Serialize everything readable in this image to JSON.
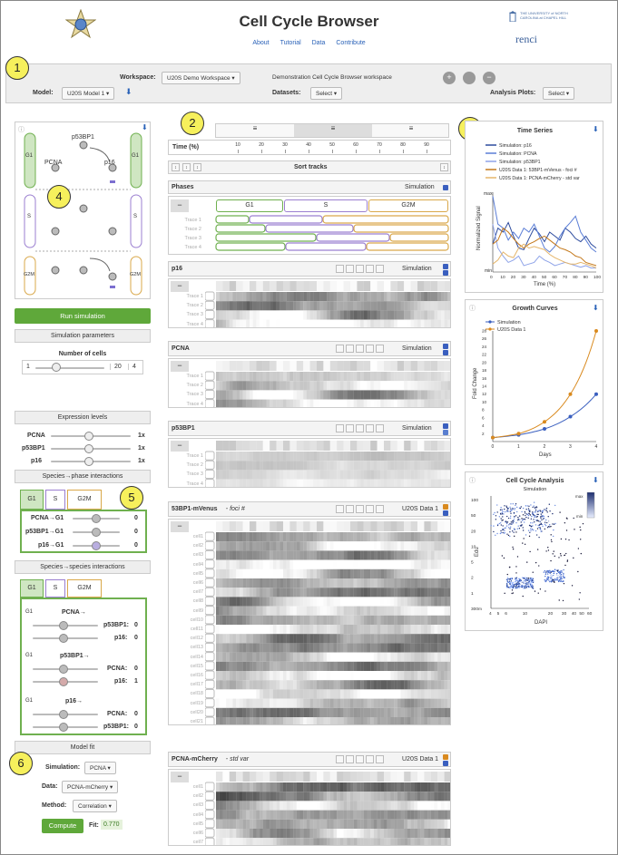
{
  "app": {
    "title": "Cell Cycle Browser",
    "links": [
      "About",
      "Tutorial",
      "Data",
      "Contribute"
    ],
    "unc": "THE UNIVERSITY of NORTH CAROLINA at CHAPEL HILL",
    "renci": "renci"
  },
  "callouts": [
    "1",
    "2",
    "3",
    "4",
    "5",
    "6"
  ],
  "toolbar": {
    "workspace_label": "Workspace:",
    "workspace_value": "U20S Demo Workspace",
    "workspace_desc": "Demonstration Cell Cycle Browser workspace",
    "model_label": "Model:",
    "model_value": "U20S Model 1",
    "datasets_label": "Datasets:",
    "datasets_value": "Select",
    "plots_label": "Analysis Plots:",
    "plots_value": "Select"
  },
  "model": {
    "nodes": [
      "p53BP1",
      "PCNA",
      "p16"
    ],
    "phases": [
      "G1",
      "S",
      "G2M"
    ]
  },
  "sim": {
    "run": "Run simulation",
    "params": "Simulation parameters",
    "cells_label": "Number of cells",
    "cells_min": "1",
    "cells_max": "20",
    "cells_val": "4",
    "expr": "Expression levels",
    "levels": [
      {
        "name": "PCNA",
        "val": "1x"
      },
      {
        "name": "p53BP1",
        "val": "1x"
      },
      {
        "name": "p16",
        "val": "1x"
      }
    ]
  },
  "spp": {
    "title": "Species→phase interactions",
    "tabs": [
      "G1",
      "S",
      "G2M"
    ],
    "rows": [
      {
        "name": "PCNA→G1",
        "val": "0"
      },
      {
        "name": "p53BP1→G1",
        "val": "0"
      },
      {
        "name": "p16→G1",
        "val": "0"
      }
    ]
  },
  "sps": {
    "title": "Species→species interactions",
    "tabs": [
      "G1",
      "S",
      "G2M"
    ],
    "groups": [
      {
        "phase": "G1",
        "src": "PCNA→",
        "targets": [
          {
            "n": "p53BP1:",
            "v": "0"
          },
          {
            "n": "p16:",
            "v": "0"
          }
        ]
      },
      {
        "phase": "G1",
        "src": "p53BP1→",
        "targets": [
          {
            "n": "PCNA:",
            "v": "0"
          },
          {
            "n": "p16:",
            "v": "1"
          }
        ]
      },
      {
        "phase": "G1",
        "src": "p16→",
        "targets": [
          {
            "n": "PCNA:",
            "v": "0"
          },
          {
            "n": "p53BP1:",
            "v": "0"
          }
        ]
      }
    ]
  },
  "fit": {
    "title": "Model fit",
    "sim_label": "Simulation:",
    "sim_val": "PCNA",
    "data_label": "Data:",
    "data_val": "PCNA-mCherry",
    "method_label": "Method:",
    "method_val": "Correlation",
    "compute": "Compute",
    "fit_label": "Fit:",
    "fit_val": "0.770"
  },
  "tracks": {
    "time_label": "Time (%)",
    "ticks": [
      "10",
      "20",
      "30",
      "40",
      "50",
      "60",
      "70",
      "80",
      "90"
    ],
    "sort": "Sort tracks",
    "phases_title": "Phases",
    "simulation": "Simulation",
    "phase_names": [
      "G1",
      "S",
      "G2M"
    ],
    "trace_labels": [
      "Trace 1",
      "Trace 2",
      "Trace 3",
      "Trace 4"
    ],
    "p16": "p16",
    "pcna": "PCNA",
    "p53bp1": "p53BP1",
    "data1_title": "53BP1-mVenus",
    "data1_sub": "foci #",
    "data_src": "U20S Data 1",
    "data2_title": "PCNA-mCherry",
    "data2_sub": "std var",
    "cells": [
      "cell1",
      "cell2",
      "cell3",
      "cell4",
      "cell5",
      "cell6",
      "cell7",
      "cell8",
      "cell9",
      "cell10",
      "cell11",
      "cell12",
      "cell13",
      "cell14",
      "cell15",
      "cell16",
      "cell17",
      "cell18",
      "cell19",
      "cell20",
      "cell21"
    ],
    "cells2": [
      "cell1",
      "cell2",
      "cell3",
      "cell4",
      "cell5",
      "cell6",
      "cell7"
    ]
  },
  "plots": {
    "ts_title": "Time Series",
    "ts_legend": [
      "Simulation: p16",
      "Simulation: PCNA",
      "Simulation: p53BP1",
      "U20S Data 1: 53BP1-mVenus - foci #",
      "U20S Data 1: PCNA-mCherry - std var"
    ],
    "ts_ylabel": "Normalized Signal",
    "ts_xlabel": "Time (%)",
    "ts_max": "max",
    "ts_min": "min",
    "ts_x": [
      "0",
      "10",
      "20",
      "30",
      "40",
      "50",
      "60",
      "70",
      "80",
      "90",
      "100"
    ],
    "gc_title": "Growth Curves",
    "gc_legend": [
      "Simulation",
      "U20S Data 1"
    ],
    "gc_ylabel": "Fold Change",
    "gc_xlabel": "Days",
    "gc_y": [
      "2",
      "4",
      "6",
      "8",
      "10",
      "12",
      "14",
      "16",
      "18",
      "20",
      "22",
      "24",
      "26",
      "28"
    ],
    "gc_x": [
      "0",
      "1",
      "2",
      "3",
      "4"
    ],
    "cc_title": "Cell Cycle Analysis",
    "cc_sub": "Simulation",
    "cc_ylabel": "Edu",
    "cc_xlabel": "DAPI",
    "cc_y": [
      "100",
      "50",
      "20",
      "10",
      "5",
      "2",
      "1",
      "300m"
    ],
    "cc_x": [
      "4",
      "5",
      "6",
      "10",
      "20",
      "30",
      "40",
      "50",
      "60"
    ],
    "cc_max": "max",
    "cc_min": "min",
    "cc_labels": [
      "S",
      "G1",
      "G2M"
    ]
  },
  "colors": {
    "g1": "#6fb04f",
    "s": "#9b7fd0",
    "g2m": "#d9a84a",
    "sim": "#3a5fbf",
    "data": "#d98a1f"
  },
  "chart_data": [
    {
      "type": "line",
      "title": "Time Series",
      "xlabel": "Time (%)",
      "ylabel": "Normalized Signal",
      "xlim": [
        0,
        100
      ],
      "x": [
        0,
        5,
        10,
        15,
        20,
        25,
        30,
        35,
        40,
        45,
        50,
        55,
        60,
        65,
        70,
        75,
        80,
        85,
        90,
        95,
        100
      ],
      "series": [
        {
          "name": "Simulation: p16",
          "values": [
            0.35,
            0.55,
            0.5,
            0.62,
            0.45,
            0.3,
            0.28,
            0.42,
            0.55,
            0.48,
            0.38,
            0.5,
            0.45,
            0.4,
            0.55,
            0.5,
            0.42,
            0.38,
            0.45,
            0.35,
            0.3
          ]
        },
        {
          "name": "Simulation: PCNA",
          "values": [
            0.95,
            0.6,
            0.55,
            0.4,
            0.5,
            0.42,
            0.55,
            0.5,
            0.6,
            0.45,
            0.3,
            0.25,
            0.32,
            0.45,
            0.55,
            0.62,
            0.7,
            0.5,
            0.4,
            0.3,
            0.25
          ]
        },
        {
          "name": "Simulation: p53BP1",
          "values": [
            0.6,
            0.3,
            0.2,
            0.12,
            0.15,
            0.2,
            0.08,
            0.1,
            0.12,
            0.2,
            0.15,
            0.12,
            0.08,
            0.1,
            0.12,
            0.1,
            0.08,
            0.06,
            0.08,
            0.05,
            0.05
          ]
        },
        {
          "name": "U20S Data 1: 53BP1-mVenus - foci #",
          "values": [
            0.35,
            0.4,
            0.55,
            0.5,
            0.42,
            0.35,
            0.3,
            0.35,
            0.38,
            0.42,
            0.45,
            0.4,
            0.35,
            0.3,
            0.28,
            0.25,
            0.2,
            0.18,
            0.12,
            0.1,
            0.08
          ]
        },
        {
          "name": "U20S Data 1: PCNA-mCherry - std var",
          "values": [
            0.1,
            0.15,
            0.25,
            0.2,
            0.18,
            0.3,
            0.35,
            0.3,
            0.32,
            0.3,
            0.28,
            0.22,
            0.18,
            0.15,
            0.12,
            0.1,
            0.1,
            0.12,
            0.1,
            0.08,
            0.05
          ]
        }
      ]
    },
    {
      "type": "line",
      "title": "Growth Curves",
      "xlabel": "Days",
      "ylabel": "Fold Change",
      "xlim": [
        0,
        4
      ],
      "ylim": [
        0,
        28
      ],
      "x": [
        0,
        1,
        2,
        3,
        4
      ],
      "series": [
        {
          "name": "Simulation",
          "values": [
            1,
            1.7,
            3.2,
            6.3,
            12
          ]
        },
        {
          "name": "U20S Data 1",
          "values": [
            1,
            2,
            5,
            12,
            28
          ]
        }
      ]
    },
    {
      "type": "scatter",
      "title": "Cell Cycle Analysis",
      "subtitle": "Simulation",
      "xlabel": "DAPI",
      "ylabel": "Edu",
      "log": true
    }
  ]
}
